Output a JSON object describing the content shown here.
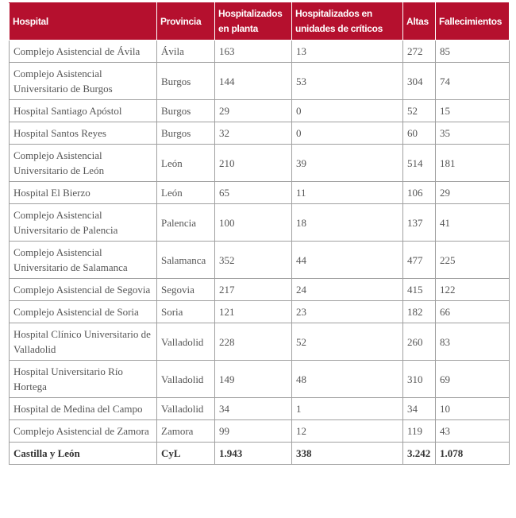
{
  "headers": [
    "Hospital",
    "Provincia",
    "Hospitalizados en planta",
    "Hospitalizados en unidades de críticos",
    "Altas",
    "Fallecimientos"
  ],
  "rows": [
    [
      "Complejo Asistencial de Ávila",
      "Ávila",
      "163",
      "13",
      "272",
      "85"
    ],
    [
      "Complejo Asistencial Universitario de Burgos",
      "Burgos",
      "144",
      "53",
      "304",
      "74"
    ],
    [
      "Hospital Santiago Apóstol",
      "Burgos",
      "29",
      "0",
      "52",
      "15"
    ],
    [
      "Hospital Santos Reyes",
      "Burgos",
      "32",
      "0",
      "60",
      "35"
    ],
    [
      "Complejo Asistencial Universitario de León",
      "León",
      "210",
      "39",
      "514",
      "181"
    ],
    [
      "Hospital El Bierzo",
      "León",
      "65",
      "11",
      "106",
      "29"
    ],
    [
      "Complejo Asistencial Universitario de Palencia",
      "Palencia",
      "100",
      "18",
      "137",
      "41"
    ],
    [
      "Complejo Asistencial Universitario de Salamanca",
      "Salamanca",
      "352",
      "44",
      "477",
      "225"
    ],
    [
      "Complejo Asistencial de Segovia",
      "Segovia",
      "217",
      "24",
      "415",
      "122"
    ],
    [
      "Complejo Asistencial de Soria",
      "Soria",
      "121",
      "23",
      "182",
      "66"
    ],
    [
      "Hospital Clínico Universitario de Valladolid",
      "Valladolid",
      "228",
      "52",
      "260",
      "83"
    ],
    [
      "Hospital Universitario Río Hortega",
      "Valladolid",
      "149",
      "48",
      "310",
      "69"
    ],
    [
      "Hospital de Medina del Campo",
      "Valladolid",
      "34",
      "1",
      "34",
      "10"
    ],
    [
      "Complejo Asistencial de Zamora",
      "Zamora",
      "99",
      "12",
      "119",
      "43"
    ]
  ],
  "total": [
    "Castilla y León",
    "CyL",
    "1.943",
    "338",
    "3.242",
    "1.078"
  ]
}
